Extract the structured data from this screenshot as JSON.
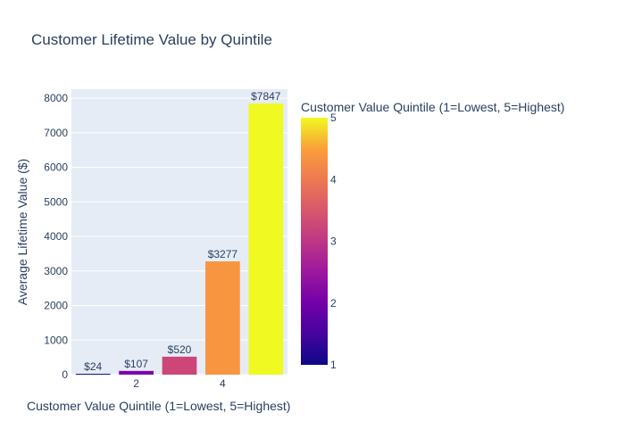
{
  "chart_data": {
    "type": "bar",
    "title": "Customer Lifetime Value by Quintile",
    "xlabel": "Customer Value Quintile (1=Lowest, 5=Highest)",
    "ylabel": "Average Lifetime Value ($)",
    "categories": [
      1,
      2,
      3,
      4,
      5
    ],
    "values": [
      24,
      107,
      520,
      3277,
      7847
    ],
    "data_labels": [
      "$24",
      "$107",
      "$520",
      "$3277",
      "$7847"
    ],
    "x_tick_labels": [
      "2",
      "4"
    ],
    "x_tick_values": [
      2,
      4
    ],
    "y_ticks": [
      0,
      1000,
      2000,
      3000,
      4000,
      5000,
      6000,
      7000,
      8000
    ],
    "ylim": [
      0,
      8260
    ],
    "grid": true,
    "colorscale": "plasma",
    "colorbar": {
      "title": "Customer Value Quintile (1=Lowest, 5=Highest)",
      "range": [
        1,
        5
      ],
      "ticks": [
        1,
        2,
        3,
        4,
        5
      ]
    }
  },
  "colors": {
    "plot_background": "#e5ecf6",
    "grid": "#ffffff",
    "text": "#2a3f5f",
    "bar_1": "#0d0887",
    "bar_2": "#7e03a8",
    "bar_3": "#cc4778",
    "bar_4": "#f89540",
    "bar_5": "#f0f921"
  }
}
